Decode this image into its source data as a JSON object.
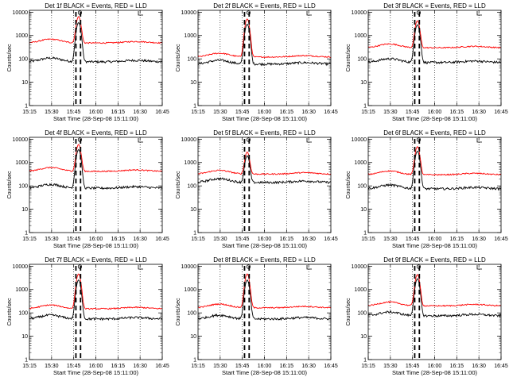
{
  "figure": {
    "xlabel": "Start Time (28-Sep-08 15:11:00)",
    "ylabel": "Counts/sec",
    "x_tick_labels": [
      "15:15",
      "15:30",
      "15:45",
      "16:00",
      "16:15",
      "16:30",
      "16:45"
    ],
    "y_tick_labels": [
      "1",
      "10",
      "100",
      "1000",
      "10000"
    ],
    "colors": {
      "events": "#000000",
      "lld": "#ff0000",
      "axes": "#000000"
    }
  },
  "chart_data": [
    {
      "type": "line",
      "title": "Det 1f BLACK = Events, RED = LLD",
      "xlabel": "Start Time (28-Sep-08 15:11:00)",
      "ylabel": "Counts/sec",
      "yscale": "log",
      "ylim": [
        1,
        12000
      ],
      "xlim": [
        0,
        100
      ],
      "grid": "dotted-vertical",
      "series": [
        {
          "name": "Events",
          "color": "#000000",
          "base": 75,
          "peak": 3500
        },
        {
          "name": "LLD",
          "color": "#ff0000",
          "base": 480,
          "peak": 6000
        }
      ],
      "flare_center": 37,
      "dashed_lines": [
        35,
        38.5
      ]
    },
    {
      "type": "line",
      "title": "Det 2f BLACK = Events, RED = LLD",
      "xlabel": "Start Time (28-Sep-08 15:11:00)",
      "ylabel": "Counts/sec",
      "yscale": "log",
      "ylim": [
        1,
        12000
      ],
      "xlim": [
        0,
        100
      ],
      "grid": "dotted-vertical",
      "series": [
        {
          "name": "Events",
          "color": "#000000",
          "base": 60,
          "peak": 3000
        },
        {
          "name": "LLD",
          "color": "#ff0000",
          "base": 120,
          "peak": 5000
        }
      ],
      "flare_center": 37,
      "dashed_lines": [
        35,
        38.5
      ]
    },
    {
      "type": "line",
      "title": "Det 3f BLACK = Events, RED = LLD",
      "xlabel": "Start Time (28-Sep-08 15:11:00)",
      "ylabel": "Counts/sec",
      "yscale": "log",
      "ylim": [
        1,
        12000
      ],
      "xlim": [
        0,
        100
      ],
      "grid": "dotted-vertical",
      "series": [
        {
          "name": "Events",
          "color": "#000000",
          "base": 70,
          "peak": 2800
        },
        {
          "name": "LLD",
          "color": "#ff0000",
          "base": 300,
          "peak": 4000
        }
      ],
      "flare_center": 37,
      "dashed_lines": [
        35,
        38.5
      ]
    },
    {
      "type": "line",
      "title": "Det 4f BLACK = Events, RED = LLD",
      "xlabel": "Start Time (28-Sep-08 15:11:00)",
      "ylabel": "Counts/sec",
      "yscale": "log",
      "ylim": [
        1,
        12000
      ],
      "xlim": [
        0,
        100
      ],
      "grid": "dotted-vertical",
      "series": [
        {
          "name": "Events",
          "color": "#000000",
          "base": 80,
          "peak": 3500
        },
        {
          "name": "LLD",
          "color": "#ff0000",
          "base": 420,
          "peak": 5500
        }
      ],
      "flare_center": 37,
      "dashed_lines": [
        35,
        38.5
      ]
    },
    {
      "type": "line",
      "title": "Det 5f BLACK = Events, RED = LLD",
      "xlabel": "Start Time (28-Sep-08 15:11:00)",
      "ylabel": "Counts/sec",
      "yscale": "log",
      "ylim": [
        1,
        12000
      ],
      "xlim": [
        0,
        100
      ],
      "grid": "dotted-vertical",
      "series": [
        {
          "name": "Events",
          "color": "#000000",
          "base": 140,
          "peak": 1800
        },
        {
          "name": "LLD",
          "color": "#ff0000",
          "base": 320,
          "peak": 2500
        }
      ],
      "flare_center": 37,
      "dashed_lines": [
        35,
        38.5
      ]
    },
    {
      "type": "line",
      "title": "Det 6f BLACK = Events, RED = LLD",
      "xlabel": "Start Time (28-Sep-08 15:11:00)",
      "ylabel": "Counts/sec",
      "yscale": "log",
      "ylim": [
        1,
        12000
      ],
      "xlim": [
        0,
        100
      ],
      "grid": "dotted-vertical",
      "series": [
        {
          "name": "Events",
          "color": "#000000",
          "base": 75,
          "peak": 3000
        },
        {
          "name": "LLD",
          "color": "#ff0000",
          "base": 300,
          "peak": 4500
        }
      ],
      "flare_center": 37,
      "dashed_lines": [
        35,
        38.5
      ]
    },
    {
      "type": "line",
      "title": "Det 7f BLACK = Events, RED = LLD",
      "xlabel": "Start Time (28-Sep-08 15:11:00)",
      "ylabel": "Counts/sec",
      "yscale": "log",
      "ylim": [
        1,
        12000
      ],
      "xlim": [
        0,
        100
      ],
      "grid": "dotted-vertical",
      "series": [
        {
          "name": "Events",
          "color": "#000000",
          "base": 55,
          "peak": 2500
        },
        {
          "name": "LLD",
          "color": "#ff0000",
          "base": 150,
          "peak": 4500
        }
      ],
      "flare_center": 37,
      "dashed_lines": [
        35,
        38.5
      ]
    },
    {
      "type": "line",
      "title": "Det 8f BLACK = Events, RED = LLD",
      "xlabel": "Start Time (28-Sep-08 15:11:00)",
      "ylabel": "Counts/sec",
      "yscale": "log",
      "ylim": [
        1,
        12000
      ],
      "xlim": [
        0,
        100
      ],
      "grid": "dotted-vertical",
      "series": [
        {
          "name": "Events",
          "color": "#000000",
          "base": 55,
          "peak": 2500
        },
        {
          "name": "LLD",
          "color": "#ff0000",
          "base": 165,
          "peak": 4500
        }
      ],
      "flare_center": 37,
      "dashed_lines": [
        35,
        38.5
      ]
    },
    {
      "type": "line",
      "title": "Det 9f BLACK = Events, RED = LLD",
      "xlabel": "Start Time (28-Sep-08 15:11:00)",
      "ylabel": "Counts/sec",
      "yscale": "log",
      "ylim": [
        1,
        12000
      ],
      "xlim": [
        0,
        100
      ],
      "grid": "dotted-vertical",
      "series": [
        {
          "name": "Events",
          "color": "#000000",
          "base": 75,
          "peak": 2800
        },
        {
          "name": "LLD",
          "color": "#ff0000",
          "base": 200,
          "peak": 4200
        }
      ],
      "flare_center": 37,
      "dashed_lines": [
        35,
        38.5
      ]
    }
  ]
}
